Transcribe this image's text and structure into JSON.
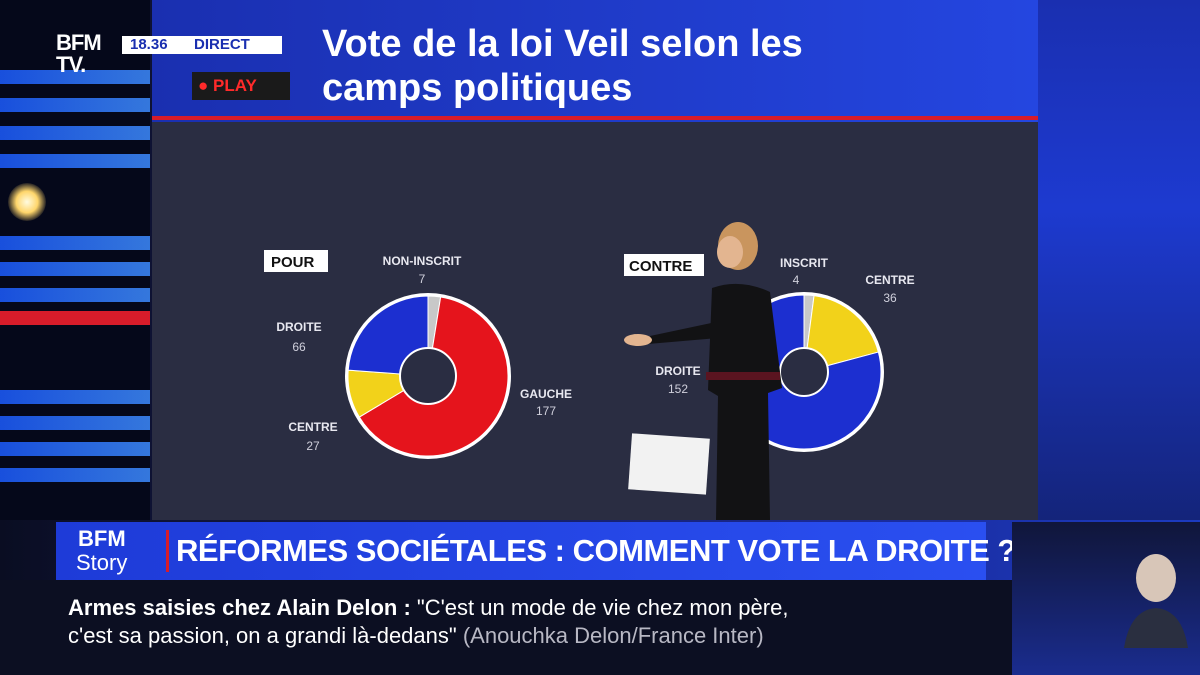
{
  "broadcast": {
    "logo": "BFM TV.",
    "time": "18.36",
    "live_label": "DIRECT",
    "play_label": "PLAY"
  },
  "title": "Vote de la loi Veil selon les camps politiques",
  "colors": {
    "gauche": "#e5141c",
    "centre": "#f2d21a",
    "droite": "#1c2fd0",
    "non_inscrit": "#c8c8c8"
  },
  "chart_data": [
    {
      "type": "pie",
      "title": "POUR",
      "categories": [
        "NON-INSCRIT",
        "GAUCHE",
        "CENTRE",
        "DROITE"
      ],
      "values": [
        7,
        177,
        27,
        66
      ]
    },
    {
      "type": "pie",
      "title": "CONTRE",
      "categories": [
        "INSCRIT",
        "CENTRE",
        "DROITE"
      ],
      "values": [
        4,
        36,
        152
      ]
    }
  ],
  "ticker": {
    "badge_top": "BFM",
    "badge_bottom": "Story",
    "headline": "RÉFORMES SOCIÉTALES : COMMENT VOTE LA DROITE ?"
  },
  "subtitle": {
    "topic": "Armes saisies chez Alain Delon",
    "colon": ":",
    "quote_line1": "\"C'est un mode de vie chez mon père,",
    "quote_line2": "c'est sa passion, on a grandi là-dedans\"",
    "source": "(Anouchka Delon/France Inter)"
  }
}
